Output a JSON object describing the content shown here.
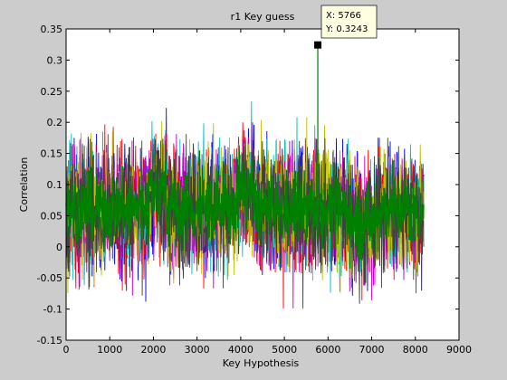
{
  "figure": {
    "background": "#cccccc",
    "axes_background": "#ffffff"
  },
  "chart_data": {
    "type": "line",
    "title": "r1 Key guess",
    "xlabel": "Key Hypothesis",
    "ylabel": "Correlation",
    "xlim": [
      0,
      9000
    ],
    "ylim": [
      -0.15,
      0.35
    ],
    "xticks": [
      "0",
      "1000",
      "2000",
      "3000",
      "4000",
      "5000",
      "6000",
      "7000",
      "8000",
      "9000"
    ],
    "yticks": [
      "-0.15",
      "-0.1",
      "-0.05",
      "0",
      "0.05",
      "0.1",
      "0.15",
      "0.2",
      "0.25",
      "0.3",
      "0.35"
    ],
    "x_extent": [
      0,
      8192
    ],
    "grid": false,
    "series_colors": [
      "#0000ff",
      "#ff0000",
      "#00bfbf",
      "#bf00bf",
      "#bfbf00",
      "#404040",
      "#008000"
    ],
    "band": {
      "mean": 0.06,
      "upper_typical": 0.2,
      "lower_typical": -0.05,
      "bump_regions": [
        [
          1900,
          2300,
          0.03
        ],
        [
          3900,
          4300,
          0.03
        ],
        [
          6500,
          7100,
          -0.02
        ]
      ]
    },
    "highlight": {
      "x": 5766,
      "y": 0.3243,
      "color": "#008000"
    },
    "datatip": {
      "x_text": "X: 5766",
      "y_text": "Y: 0.3243"
    }
  }
}
